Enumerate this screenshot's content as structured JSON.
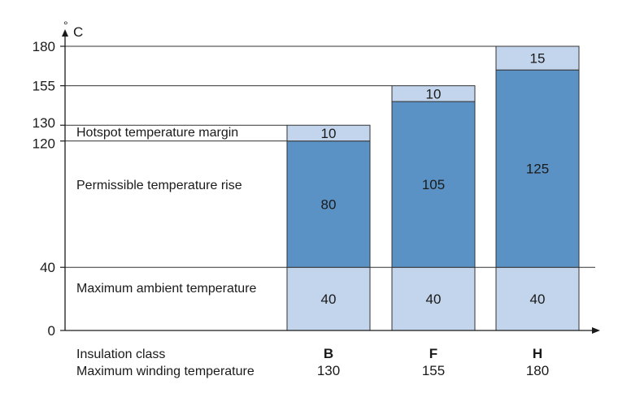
{
  "chart_data": {
    "type": "bar",
    "stacked": true,
    "y_unit_label": "° C",
    "ylim": [
      0,
      180
    ],
    "y_ticks": [
      0,
      40,
      120,
      130,
      155,
      180
    ],
    "categories": [
      "B",
      "F",
      "H"
    ],
    "series": [
      {
        "name": "Maximum ambient temperature",
        "values": [
          40,
          40,
          40
        ],
        "color": "#c3d5ec"
      },
      {
        "name": "Permissible temperature rise",
        "values": [
          80,
          105,
          125
        ],
        "color": "#5b92c6"
      },
      {
        "name": "Hotspot temperature margin",
        "values": [
          10,
          10,
          15
        ],
        "color": "#c3d5ec"
      }
    ],
    "row_labels": {
      "insulation_class": "Insulation class",
      "max_winding_temperature": "Maximum winding temperature"
    },
    "max_winding_temperatures": [
      130,
      155,
      180
    ],
    "colors": {
      "border": "#333333",
      "axis": "#1a1a1a"
    }
  }
}
